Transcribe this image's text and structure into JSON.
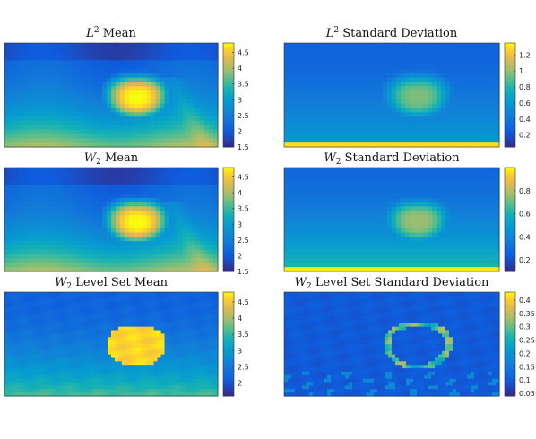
{
  "chart_data": [
    {
      "type": "heatmap",
      "title_math": "L",
      "title_sup": "2",
      "title_sub": "",
      "title_text": "Mean",
      "clim": [
        1.5,
        4.8
      ],
      "colorbar_ticks": [
        "1.5",
        "2",
        "2.5",
        "3",
        "3.5",
        "4",
        "4.5"
      ],
      "colorbar_values": [
        1.5,
        2,
        2.5,
        3,
        3.5,
        4,
        4.5
      ],
      "field": "mean_smooth",
      "grid": false
    },
    {
      "type": "heatmap",
      "title_math": "L",
      "title_sup": "2",
      "title_sub": "",
      "title_text": "Standard Deviation",
      "clim": [
        0.05,
        1.35
      ],
      "colorbar_ticks": [
        "0.2",
        "0.4",
        "0.6",
        "0.8",
        "1",
        "1.2"
      ],
      "colorbar_values": [
        0.2,
        0.4,
        0.6,
        0.8,
        1.0,
        1.2
      ],
      "field": "std_smooth",
      "grid": false
    },
    {
      "type": "heatmap",
      "title_math": "W",
      "title_sup": "",
      "title_sub": "2",
      "title_text": "Mean",
      "clim": [
        1.5,
        4.8
      ],
      "colorbar_ticks": [
        "1.5",
        "2",
        "2.5",
        "3",
        "3.5",
        "4",
        "4.5"
      ],
      "colorbar_values": [
        1.5,
        2,
        2.5,
        3,
        3.5,
        4,
        4.5
      ],
      "field": "mean_smooth",
      "grid": false
    },
    {
      "type": "heatmap",
      "title_math": "W",
      "title_sup": "",
      "title_sub": "2",
      "title_text": "Standard Deviation",
      "clim": [
        0.1,
        1.0
      ],
      "colorbar_ticks": [
        "0.2",
        "0.4",
        "0.6",
        "0.8"
      ],
      "colorbar_values": [
        0.2,
        0.4,
        0.6,
        0.8
      ],
      "field": "std_smooth2",
      "grid": false
    },
    {
      "type": "heatmap",
      "title_math": "W",
      "title_sup": "",
      "title_sub": "2",
      "title_text": "Level Set Mean",
      "clim": [
        1.6,
        4.8
      ],
      "colorbar_ticks": [
        "2",
        "2.5",
        "3",
        "3.5",
        "4",
        "4.5"
      ],
      "colorbar_values": [
        2,
        2.5,
        3,
        3.5,
        4,
        4.5
      ],
      "field": "mean_levelset",
      "grid": false
    },
    {
      "type": "heatmap",
      "title_math": "W",
      "title_sup": "",
      "title_sub": "2",
      "title_text": "Level Set Standard Deviation",
      "clim": [
        0.04,
        0.43
      ],
      "colorbar_ticks": [
        "0.05",
        "0.1",
        "0.15",
        "0.2",
        "0.25",
        "0.3",
        "0.35",
        "0.4"
      ],
      "colorbar_values": [
        0.05,
        0.1,
        0.15,
        0.2,
        0.25,
        0.3,
        0.35,
        0.4
      ],
      "field": "std_levelset",
      "grid": false
    }
  ],
  "colormap": "parula"
}
